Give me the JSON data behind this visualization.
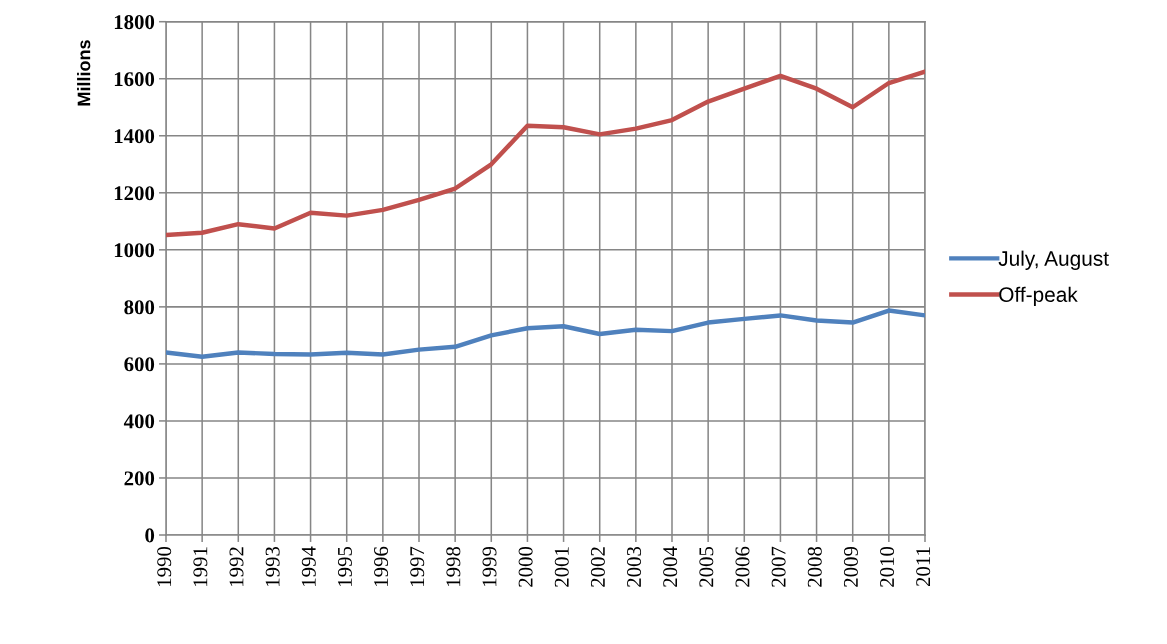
{
  "chart_data": {
    "type": "line",
    "ylabel": "Millions",
    "categories": [
      "1990",
      "1991",
      "1992",
      "1993",
      "1994",
      "1995",
      "1996",
      "1997",
      "1998",
      "1999",
      "2000",
      "2001",
      "2002",
      "2003",
      "2004",
      "2005",
      "2006",
      "2007",
      "2008",
      "2009",
      "2010",
      "2011"
    ],
    "series": [
      {
        "name": "July, August",
        "color": "#4f81bd",
        "values": [
          640,
          625,
          640,
          635,
          633,
          639,
          633,
          650,
          660,
          700,
          725,
          732,
          705,
          720,
          715,
          745,
          758,
          770,
          752,
          745,
          787,
          770
        ]
      },
      {
        "name": "Off-peak",
        "color": "#c0504d",
        "values": [
          1052,
          1060,
          1090,
          1075,
          1130,
          1120,
          1140,
          1175,
          1215,
          1300,
          1435,
          1430,
          1405,
          1425,
          1455,
          1520,
          1565,
          1610,
          1565,
          1500,
          1585,
          1625
        ]
      }
    ],
    "ylim": [
      0,
      1800
    ],
    "yticks": [
      0,
      200,
      400,
      600,
      800,
      1000,
      1200,
      1400,
      1600,
      1800
    ],
    "grid": true,
    "legend": "right",
    "marker": "none",
    "line_style": "solid"
  }
}
